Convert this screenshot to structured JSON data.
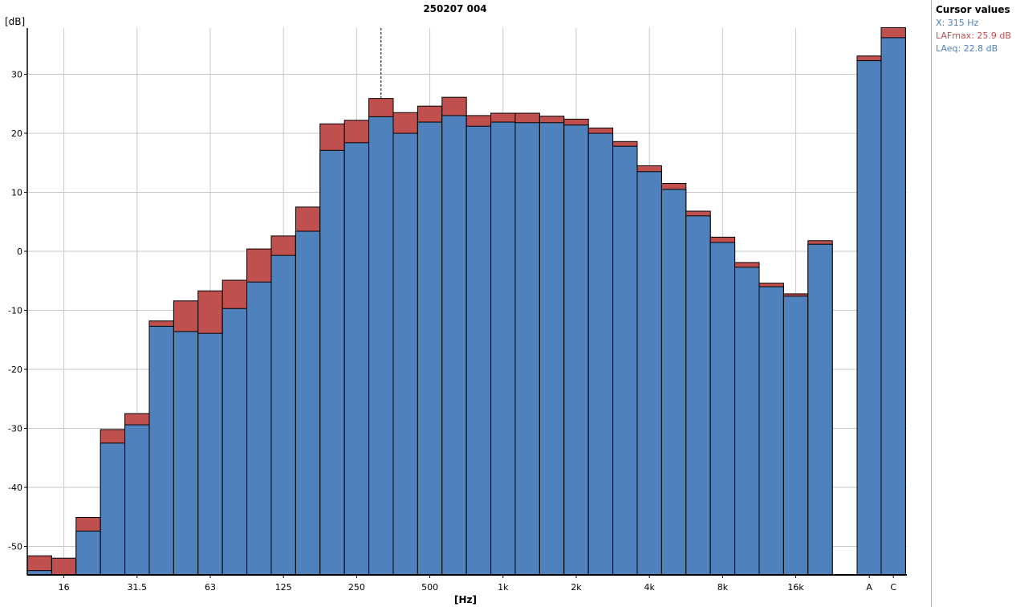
{
  "chart_data": {
    "type": "bar",
    "title": "250207 004",
    "xlabel": "[Hz]",
    "ylabel": "[dB]",
    "ylim": [
      -54.8,
      37.8
    ],
    "yticks": [
      30,
      20,
      10,
      0,
      -10,
      -20,
      -30,
      -40,
      -50
    ],
    "grid": true,
    "bands": [
      "12.5",
      "16",
      "20",
      "25",
      "31.5",
      "40",
      "50",
      "63",
      "80",
      "100",
      "125",
      "160",
      "200",
      "250",
      "315",
      "400",
      "500",
      "630",
      "800",
      "1k",
      "1.25k",
      "1.6k",
      "2k",
      "2.5k",
      "3.15k",
      "4k",
      "5k",
      "6.3k",
      "8k",
      "10k",
      "12.5k",
      "16k",
      "20k"
    ],
    "xtick_labels": {
      "16": "16",
      "31.5": "31.5",
      "63": "63",
      "125": "125",
      "250": "250",
      "500": "500",
      "1k": "1k",
      "2k": "2k",
      "4k": "4k",
      "8k": "8k",
      "16k": "16k"
    },
    "series": [
      {
        "name": "LAFmax",
        "color": "#c0504d",
        "values": [
          -51.6,
          -52.0,
          -45.1,
          -30.2,
          -27.5,
          -11.8,
          -8.4,
          -6.7,
          -4.9,
          0.4,
          2.6,
          7.5,
          21.6,
          22.2,
          25.9,
          23.5,
          24.6,
          26.1,
          23.0,
          23.4,
          23.4,
          22.9,
          22.4,
          20.9,
          18.6,
          14.5,
          11.5,
          6.8,
          2.4,
          -1.9,
          -5.4,
          -7.2,
          1.8
        ]
      },
      {
        "name": "LAeq",
        "color": "#4f81bd",
        "values": [
          -54.1,
          -55.0,
          -47.4,
          -32.5,
          -29.4,
          -12.7,
          -13.6,
          -13.9,
          -9.7,
          -5.2,
          -0.7,
          3.4,
          17.1,
          18.4,
          22.8,
          20.0,
          21.9,
          23.0,
          21.2,
          21.9,
          21.8,
          21.8,
          21.4,
          20.0,
          17.8,
          13.5,
          10.5,
          6.0,
          1.5,
          -2.7,
          -6.0,
          -7.6,
          1.2
        ]
      }
    ],
    "totals": {
      "categories": [
        "A",
        "C"
      ],
      "LAFmax": [
        33.1,
        37.9
      ],
      "LAeq": [
        32.3,
        36.2
      ]
    },
    "cursor_band": "315"
  },
  "cursor_panel": {
    "title": "Cursor values",
    "x": "X: 315 Hz",
    "lafmax": "LAFmax: 25.9 dB",
    "laeq": "LAeq: 22.8 dB",
    "colors": {
      "x": "#4f81bd",
      "lafmax": "#c0504d",
      "laeq": "#4f81bd"
    }
  }
}
